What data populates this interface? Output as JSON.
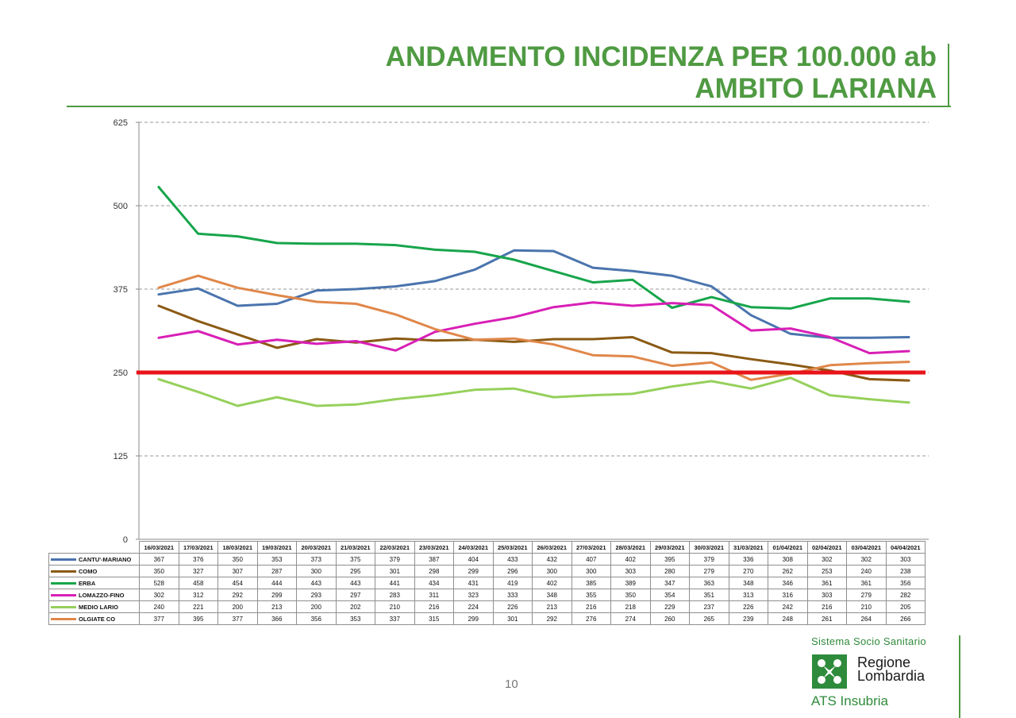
{
  "title": {
    "line1": "ANDAMENTO INCIDENZA PER 100.000 ab",
    "line2": "AMBITO LARIANA"
  },
  "chart_data": {
    "type": "line",
    "yticks": [
      0,
      125,
      250,
      375,
      500,
      625
    ],
    "ylim": [
      0,
      625
    ],
    "grid": true,
    "x": [
      "16/03/2021",
      "17/03/2021",
      "18/03/2021",
      "19/03/2021",
      "20/03/2021",
      "21/03/2021",
      "22/03/2021",
      "23/03/2021",
      "24/03/2021",
      "25/03/2021",
      "26/03/2021",
      "27/03/2021",
      "28/03/2021",
      "29/03/2021",
      "30/03/2021",
      "31/03/2021",
      "01/04/2021",
      "02/04/2021",
      "03/04/2021",
      "04/04/2021"
    ],
    "threshold": {
      "value": 250,
      "color": "#e8141a"
    },
    "series": [
      {
        "name": "CANTU'-MARIANO",
        "color": "#4a74ad",
        "values": [
          367,
          376,
          350,
          353,
          373,
          375,
          379,
          387,
          404,
          433,
          432,
          407,
          402,
          395,
          379,
          336,
          308,
          302,
          302,
          303
        ]
      },
      {
        "name": "COMO",
        "color": "#8a5a14",
        "values": [
          350,
          327,
          307,
          287,
          300,
          295,
          301,
          298,
          299,
          296,
          300,
          300,
          303,
          280,
          279,
          270,
          262,
          253,
          240,
          238
        ]
      },
      {
        "name": "ERBA",
        "color": "#17a54b",
        "values": [
          528,
          458,
          454,
          444,
          443,
          443,
          441,
          434,
          431,
          419,
          402,
          385,
          389,
          347,
          363,
          348,
          346,
          361,
          361,
          356
        ]
      },
      {
        "name": "LOMAZZO-FINO",
        "color": "#d81fb6",
        "values": [
          302,
          312,
          292,
          299,
          293,
          297,
          283,
          311,
          323,
          333,
          348,
          355,
          350,
          354,
          351,
          313,
          316,
          303,
          279,
          282
        ]
      },
      {
        "name": "MEDIO LARIO",
        "color": "#96d05c",
        "values": [
          240,
          221,
          200,
          213,
          200,
          202,
          210,
          216,
          224,
          226,
          213,
          216,
          218,
          229,
          237,
          226,
          242,
          216,
          210,
          205
        ]
      },
      {
        "name": "OLGIATE CO",
        "color": "#e0874a",
        "values": [
          377,
          395,
          377,
          366,
          356,
          353,
          337,
          315,
          299,
          301,
          292,
          276,
          274,
          260,
          265,
          239,
          248,
          261,
          264,
          266
        ]
      }
    ]
  },
  "page_number": "10",
  "logo": {
    "top": "Sistema Socio Sanitario",
    "name_line1": "Regione",
    "name_line2": "Lombardia",
    "ats": "ATS Insubria"
  }
}
